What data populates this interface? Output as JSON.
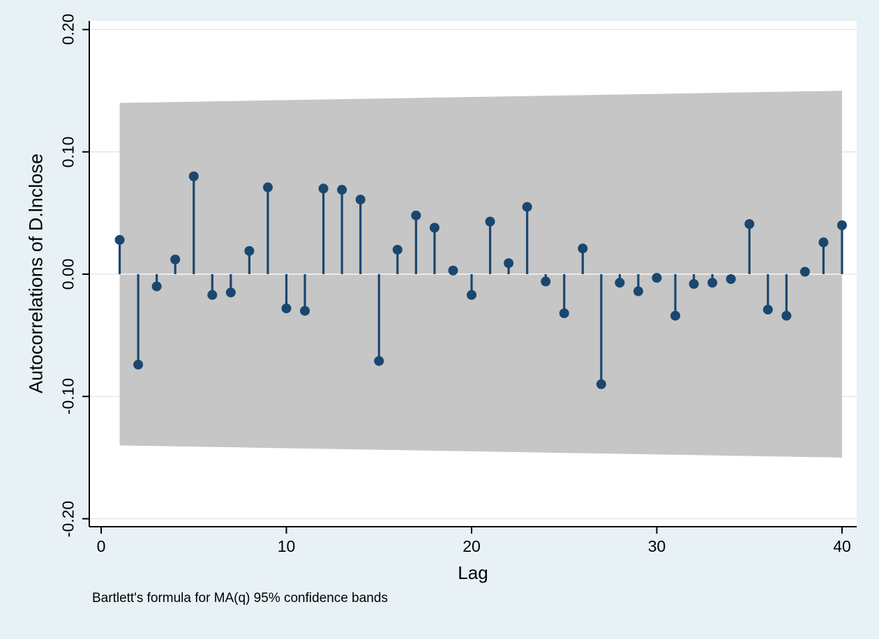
{
  "chart_data": {
    "type": "stem",
    "title": "",
    "ylabel": "Autocorrelations of D.lnclose",
    "xlabel": "Lag",
    "note": "Bartlett's formula for MA(q) 95% confidence bands",
    "xlim": [
      0,
      41
    ],
    "ylim": [
      -0.2,
      0.2
    ],
    "grid": "horizontal",
    "legend": "none",
    "xticks": [
      {
        "value": 0,
        "label": "0"
      },
      {
        "value": 10,
        "label": "10"
      },
      {
        "value": 20,
        "label": "20"
      },
      {
        "value": 30,
        "label": "30"
      },
      {
        "value": 40,
        "label": "40"
      }
    ],
    "yticks": [
      {
        "value": 0.2,
        "label": "0.20"
      },
      {
        "value": 0.1,
        "label": "0.10"
      },
      {
        "value": 0.0,
        "label": "0.00"
      },
      {
        "value": -0.1,
        "label": "-0.10"
      },
      {
        "value": -0.2,
        "label": "-0.20"
      }
    ],
    "lags": [
      1,
      2,
      3,
      4,
      5,
      6,
      7,
      8,
      9,
      10,
      11,
      12,
      13,
      14,
      15,
      16,
      17,
      18,
      19,
      20,
      21,
      22,
      23,
      24,
      25,
      26,
      27,
      28,
      29,
      30,
      31,
      32,
      33,
      34,
      35,
      36,
      37,
      38,
      39,
      40
    ],
    "values": [
      0.028,
      -0.074,
      -0.01,
      0.012,
      0.08,
      -0.017,
      -0.015,
      0.019,
      0.071,
      -0.028,
      -0.03,
      0.07,
      0.069,
      0.061,
      -0.071,
      0.02,
      0.048,
      0.038,
      0.003,
      -0.017,
      0.043,
      0.009,
      0.055,
      -0.006,
      -0.032,
      0.021,
      -0.09,
      -0.007,
      -0.014,
      -0.003,
      -0.034,
      -0.008,
      -0.007,
      -0.004,
      0.041,
      -0.029,
      -0.034,
      0.002,
      0.026,
      0.04
    ],
    "band_label": "MA(q) 95% confidence band",
    "band_upper": [
      0.14,
      0.1403,
      0.1405,
      0.1408,
      0.141,
      0.1413,
      0.1415,
      0.1418,
      0.1421,
      0.1423,
      0.1426,
      0.1428,
      0.1431,
      0.1433,
      0.1436,
      0.1438,
      0.1441,
      0.1444,
      0.1446,
      0.1449,
      0.1451,
      0.1454,
      0.1456,
      0.1459,
      0.1462,
      0.1464,
      0.1467,
      0.1469,
      0.1472,
      0.1474,
      0.1477,
      0.1479,
      0.1482,
      0.1485,
      0.1487,
      0.149,
      0.1492,
      0.1495,
      0.1497,
      0.15
    ],
    "band_lower": [
      -0.14,
      -0.1403,
      -0.1405,
      -0.1408,
      -0.141,
      -0.1413,
      -0.1415,
      -0.1418,
      -0.1421,
      -0.1423,
      -0.1426,
      -0.1428,
      -0.1431,
      -0.1433,
      -0.1436,
      -0.1438,
      -0.1441,
      -0.1444,
      -0.1446,
      -0.1449,
      -0.1451,
      -0.1454,
      -0.1456,
      -0.1459,
      -0.1462,
      -0.1464,
      -0.1467,
      -0.1469,
      -0.1472,
      -0.1474,
      -0.1477,
      -0.1479,
      -0.1482,
      -0.1485,
      -0.1487,
      -0.149,
      -0.1492,
      -0.1495,
      -0.1497,
      -0.15
    ],
    "colors": {
      "line": "#1a476f",
      "band": "#c6c6c6",
      "plot_bg": "#ffffff",
      "page_bg": "#e8f1f5",
      "grid": "#d9e6f0",
      "axis": "#000000",
      "zero_line": "rgba(255,255,255,0.85)"
    }
  }
}
